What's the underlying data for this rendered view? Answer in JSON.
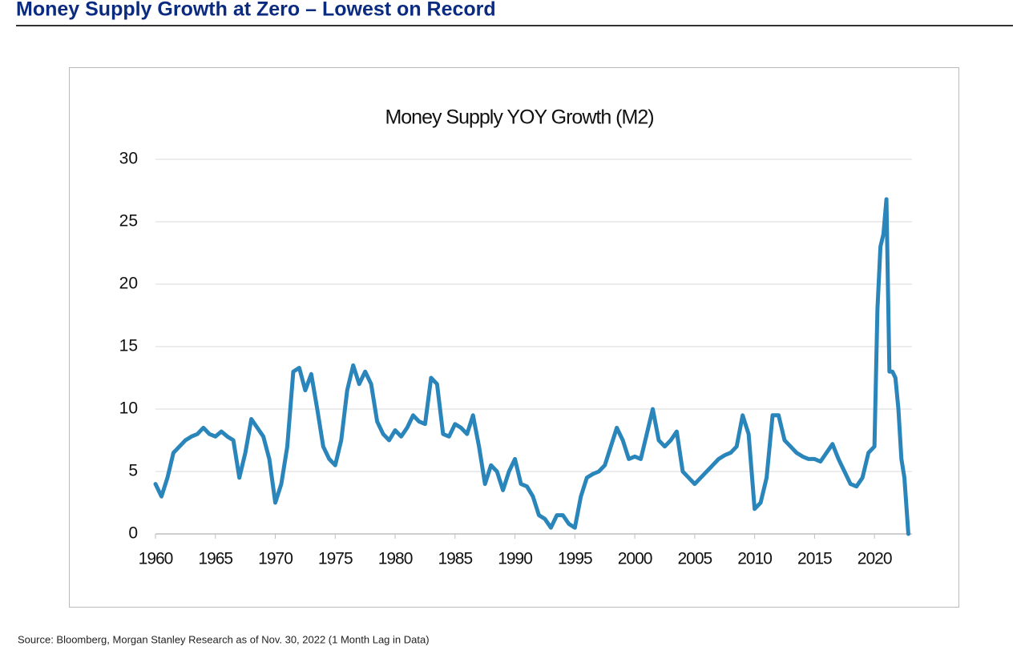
{
  "header": {
    "title": "Money Supply Growth at Zero – Lowest on Record"
  },
  "chart_data": {
    "type": "line",
    "title": "Money Supply YOY Growth (M2)",
    "x": [
      1960,
      1960.5,
      1961,
      1961.5,
      1962,
      1962.5,
      1963,
      1963.5,
      1964,
      1964.5,
      1965,
      1965.5,
      1966,
      1966.5,
      1967,
      1967.5,
      1968,
      1968.5,
      1969,
      1969.5,
      1970,
      1970.5,
      1971,
      1971.5,
      1972,
      1972.5,
      1973,
      1973.5,
      1974,
      1974.5,
      1975,
      1975.5,
      1976,
      1976.5,
      1977,
      1977.5,
      1978,
      1978.5,
      1979,
      1979.5,
      1980,
      1980.5,
      1981,
      1981.5,
      1982,
      1982.5,
      1983,
      1983.5,
      1984,
      1984.5,
      1985,
      1985.5,
      1986,
      1986.5,
      1987,
      1987.5,
      1988,
      1988.5,
      1989,
      1989.5,
      1990,
      1990.5,
      1991,
      1991.5,
      1992,
      1992.5,
      1993,
      1993.5,
      1994,
      1994.5,
      1995,
      1995.5,
      1996,
      1996.5,
      1997,
      1997.5,
      1998,
      1998.5,
      1999,
      1999.5,
      2000,
      2000.5,
      2001,
      2001.5,
      2002,
      2002.5,
      2003,
      2003.5,
      2004,
      2004.5,
      2005,
      2005.5,
      2006,
      2006.5,
      2007,
      2007.5,
      2008,
      2008.5,
      2009,
      2009.5,
      2010,
      2010.5,
      2011,
      2011.5,
      2012,
      2012.5,
      2013,
      2013.5,
      2014,
      2014.5,
      2015,
      2015.5,
      2016,
      2016.5,
      2017,
      2017.5,
      2018,
      2018.5,
      2019,
      2019.5,
      2020,
      2020.25,
      2020.5,
      2020.75,
      2021,
      2021.25,
      2021.5,
      2021.75,
      2022,
      2022.25,
      2022.5,
      2022.83
    ],
    "series": [
      {
        "name": "M2 YOY Growth",
        "color": "#2a86ba",
        "values": [
          4,
          3,
          4.5,
          6.5,
          7,
          7.5,
          7.8,
          8,
          8.5,
          8,
          7.8,
          8.2,
          7.8,
          7.5,
          4.5,
          6.5,
          9.2,
          8.5,
          7.8,
          6,
          2.5,
          4,
          7,
          13,
          13.3,
          11.5,
          12.8,
          10,
          7,
          6,
          5.5,
          7.5,
          11.5,
          13.5,
          12,
          13,
          12,
          9,
          8,
          7.5,
          8.3,
          7.8,
          8.5,
          9.5,
          9,
          8.8,
          12.5,
          12,
          8,
          7.8,
          8.8,
          8.5,
          8,
          9.5,
          7,
          4,
          5.5,
          5,
          3.5,
          5,
          6,
          4,
          3.8,
          3,
          1.5,
          1.2,
          0.5,
          1.5,
          1.5,
          0.8,
          0.5,
          3,
          4.5,
          4.8,
          5,
          5.5,
          7,
          8.5,
          7.5,
          6,
          6.2,
          6,
          8,
          10,
          7.5,
          7,
          7.5,
          8.2,
          5,
          4.5,
          4,
          4.5,
          5,
          5.5,
          6,
          6.3,
          6.5,
          7,
          9.5,
          8,
          2,
          2.5,
          4.5,
          9.5,
          9.5,
          7.5,
          7,
          6.5,
          6.2,
          6,
          6,
          5.8,
          6.5,
          7.2,
          6,
          5,
          4,
          3.8,
          4.5,
          6.5,
          7,
          18,
          23,
          24,
          26.8,
          13,
          13,
          12.5,
          10,
          6,
          4.5,
          0
        ]
      }
    ],
    "xlim": [
      1960,
      2023
    ],
    "ylim": [
      0,
      30
    ],
    "xticks": [
      1960,
      1965,
      1970,
      1975,
      1980,
      1985,
      1990,
      1995,
      2000,
      2005,
      2010,
      2015,
      2020
    ],
    "yticks": [
      0,
      5,
      10,
      15,
      20,
      25,
      30
    ],
    "grid": true
  },
  "footer": {
    "source": "Source: Bloomberg, Morgan Stanley Research as of Nov. 30, 2022 (1 Month Lag in Data)"
  }
}
